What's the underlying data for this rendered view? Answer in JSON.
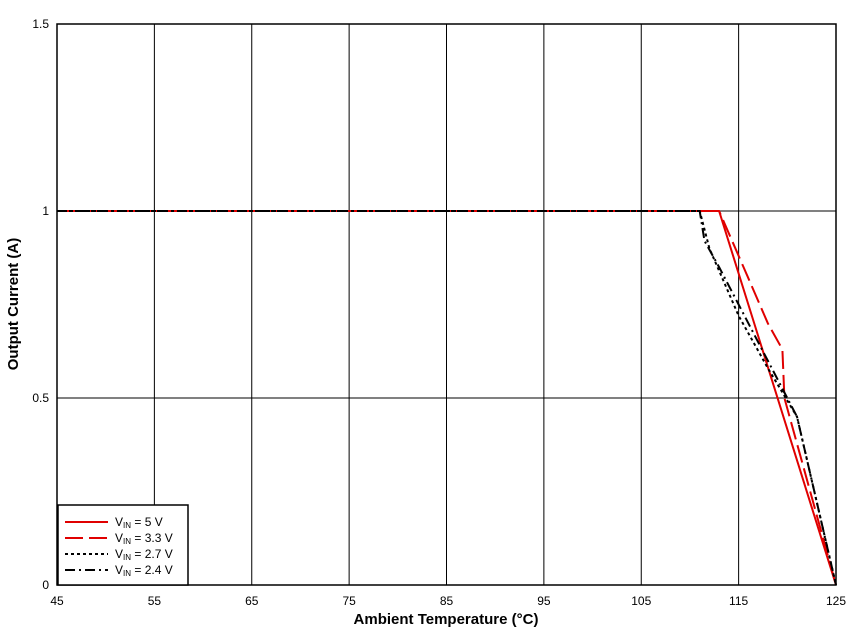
{
  "chart_data": {
    "type": "line",
    "xlabel": "Ambient Temperature (°C)",
    "ylabel": "Output Current (A)",
    "xlim": [
      45,
      125
    ],
    "ylim": [
      0,
      1.5
    ],
    "x_ticks": [
      45,
      55,
      65,
      75,
      85,
      95,
      105,
      115,
      125
    ],
    "y_ticks": [
      0,
      0.5,
      1,
      1.5
    ],
    "x_tick_labels": [
      "45",
      "55",
      "65",
      "75",
      "85",
      "95",
      "105",
      "115",
      "125"
    ],
    "y_tick_labels": [
      "0",
      "0.5",
      "1",
      "1.5"
    ],
    "grid": true,
    "legend_position": "bottom-left",
    "series": [
      {
        "name": "VIN = 5 V",
        "legend": {
          "main": "V",
          "sub": "IN",
          "rest": " = 5 V"
        },
        "color": "#e00000",
        "dash": "solid",
        "x": [
          45,
          113,
          125
        ],
        "y": [
          1.0,
          1.0,
          0.0
        ]
      },
      {
        "name": "VIN = 3.3 V",
        "legend": {
          "main": "V",
          "sub": "IN",
          "rest": " = 3.3 V"
        },
        "color": "#e00000",
        "dash": "long-dash",
        "x": [
          45,
          112,
          113,
          116,
          118,
          119.5,
          119.7,
          125
        ],
        "y": [
          1.0,
          1.0,
          1.0,
          0.82,
          0.7,
          0.63,
          0.5,
          0.0
        ]
      },
      {
        "name": "VIN = 2.7 V",
        "legend": {
          "main": "V",
          "sub": "IN",
          "rest": " = 2.7 V"
        },
        "color": "#000000",
        "dash": "dotted",
        "x": [
          45,
          111,
          112,
          115,
          118,
          121,
          125
        ],
        "y": [
          1.0,
          1.0,
          0.9,
          0.72,
          0.58,
          0.45,
          0.0
        ]
      },
      {
        "name": "VIN = 2.4 V",
        "legend": {
          "main": "V",
          "sub": "IN",
          "rest": " = 2.4 V"
        },
        "color": "#000000",
        "dash": "dash-dot",
        "x": [
          45,
          111,
          111.5,
          113,
          115,
          118,
          121,
          125
        ],
        "y": [
          1.0,
          1.0,
          0.92,
          0.85,
          0.75,
          0.6,
          0.45,
          0.0
        ]
      }
    ]
  }
}
